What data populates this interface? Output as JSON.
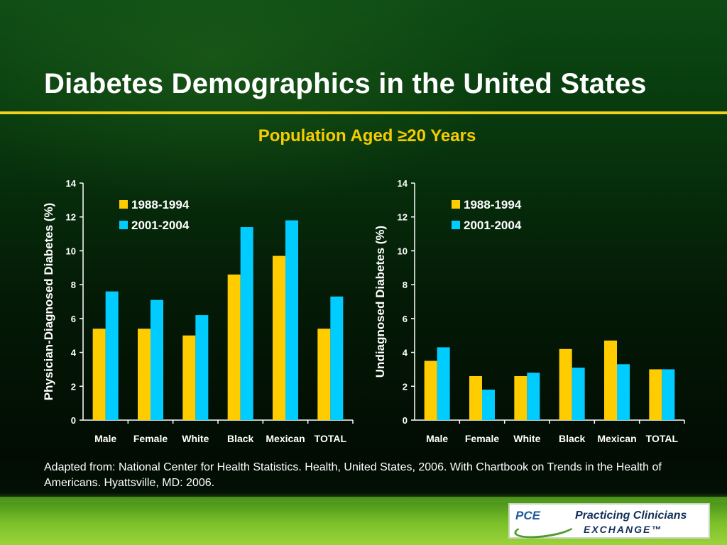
{
  "slide": {
    "title": "Diabetes Demographics in the United States",
    "subtitle": "Population Aged ≥20 Years",
    "footnote": "Adapted from: National Center for Health Statistics. Health, United States, 2006. With Chartbook on Trends in the Health of Americans. Hyattsville, MD: 2006."
  },
  "logo": {
    "mark": "PCE",
    "line1": "Practicing Clinicians",
    "line2": "EXCHANGE™"
  },
  "colors": {
    "series_1988_1994": "#ffcc00",
    "series_2001_2004": "#00ccff",
    "title_rule": "#f2d21c",
    "subtitle": "#f6cc00"
  },
  "chart_data": [
    {
      "type": "bar",
      "title": "",
      "xlabel": "",
      "ylabel": "Physician-Diagnosed Diabetes (%)",
      "ylim": [
        0,
        14
      ],
      "yticks": [
        0,
        2,
        4,
        6,
        8,
        10,
        12,
        14
      ],
      "categories": [
        "Male",
        "Female",
        "White",
        "Black",
        "Mexican",
        "TOTAL"
      ],
      "series": [
        {
          "name": "1988-1994",
          "values": [
            5.4,
            5.4,
            5.0,
            8.6,
            9.7,
            5.4
          ]
        },
        {
          "name": "2001-2004",
          "values": [
            7.6,
            7.1,
            6.2,
            11.4,
            11.8,
            7.3
          ]
        }
      ],
      "grid": false,
      "legend": "top-left"
    },
    {
      "type": "bar",
      "title": "",
      "xlabel": "",
      "ylabel": "Undiagnosed Diabetes (%)",
      "ylim": [
        0,
        14
      ],
      "yticks": [
        0,
        2,
        4,
        6,
        8,
        10,
        12,
        14
      ],
      "categories": [
        "Male",
        "Female",
        "White",
        "Black",
        "Mexican",
        "TOTAL"
      ],
      "series": [
        {
          "name": "1988-1994",
          "values": [
            3.5,
            2.6,
            2.6,
            4.2,
            4.7,
            3.0
          ]
        },
        {
          "name": "2001-2004",
          "values": [
            4.3,
            1.8,
            2.8,
            3.1,
            3.3,
            3.0
          ]
        }
      ],
      "grid": false,
      "legend": "top-left"
    }
  ]
}
